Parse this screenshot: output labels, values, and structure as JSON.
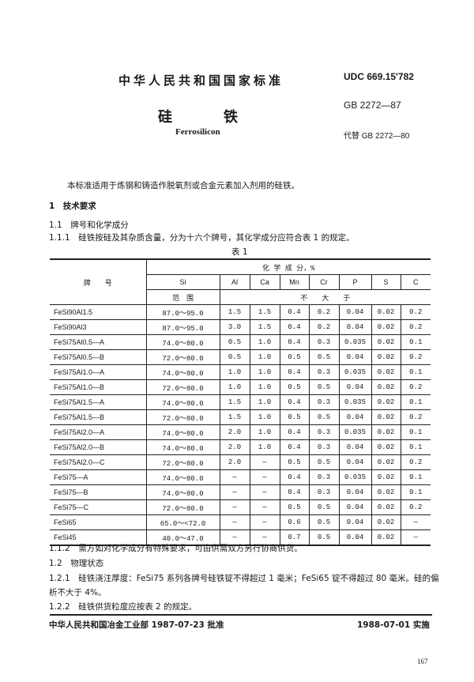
{
  "header": {
    "standard_title": "中华人民共和国国家标准",
    "udc": "UDC 669.15'782",
    "gb": "GB 2272—87",
    "title_char1": "硅",
    "title_char2": "铁",
    "title_en": "Ferrosilicon",
    "replaces": "代替 GB 2272—80"
  },
  "intro": "本标准适用于炼钢和铸造作脱氧剂或合金元素加入剂用的硅铁。",
  "sections": {
    "s1": "1　技术要求",
    "s1_1": "1.1　牌号和化学成分",
    "s1_1_1": "1.1.1　硅铁按硅及其杂质含量，分为十六个牌号，其化学成分应符合表 1 的规定。"
  },
  "table": {
    "caption": "表 1",
    "grade_header": "牌　　号",
    "composition_header": "化 学 成 分，%",
    "columns": [
      "Si",
      "Al",
      "Ca",
      "Mn",
      "Cr",
      "P",
      "S",
      "C"
    ],
    "range_label": "范　围",
    "max_label": "不　　大　　于",
    "rows": [
      [
        "FeSi90Al1.5",
        "87.0～95.0",
        "1.5",
        "1.5",
        "0.4",
        "0.2",
        "0.04",
        "0.02",
        "0.2"
      ],
      [
        "FeSi90Al3",
        "87.0～95.0",
        "3.0",
        "1.5",
        "0.4",
        "0.2",
        "0.04",
        "0.02",
        "0.2"
      ],
      [
        "FeSi75Al0.5—A",
        "74.0～80.0",
        "0.5",
        "1.0",
        "0.4",
        "0.3",
        "0.035",
        "0.02",
        "0.1"
      ],
      [
        "FeSi75Al0.5—B",
        "72.0～80.0",
        "0.5",
        "1.0",
        "0.5",
        "0.5",
        "0.04",
        "0.02",
        "0.2"
      ],
      [
        "FeSi75Al1.0—A",
        "74.0～80.0",
        "1.0",
        "1.0",
        "0.4",
        "0.3",
        "0.035",
        "0.02",
        "0.1"
      ],
      [
        "FeSi75Al1.0—B",
        "72.0～80.0",
        "1.0",
        "1.0",
        "0.5",
        "0.5",
        "0.04",
        "0.02",
        "0.2"
      ],
      [
        "FeSi75Al1.5—A",
        "74.0～80.0",
        "1.5",
        "1.0",
        "0.4",
        "0.3",
        "0.035",
        "0.02",
        "0.1"
      ],
      [
        "FeSi75Al1.5—B",
        "72.0～80.0",
        "1.5",
        "1.0",
        "0.5",
        "0.5",
        "0.04",
        "0.02",
        "0.2"
      ],
      [
        "FeSi75Al2.0—A",
        "74.0～80.0",
        "2.0",
        "1.0",
        "0.4",
        "0.3",
        "0.035",
        "0.02",
        "0.1"
      ],
      [
        "FeSi75Al2.0—B",
        "74.0～80.0",
        "2.0",
        "1.0",
        "0.4",
        "0.3",
        "0.04",
        "0.02",
        "0.1"
      ],
      [
        "FeSi75Al2.0—C",
        "72.0～80.0",
        "2.0",
        "—",
        "0.5",
        "0.5",
        "0.04",
        "0.02",
        "0.2"
      ],
      [
        "FeSi75—A",
        "74.0～80.0",
        "—",
        "—",
        "0.4",
        "0.3",
        "0.035",
        "0.02",
        "0.1"
      ],
      [
        "FeSi75—B",
        "74.0～80.0",
        "—",
        "—",
        "0.4",
        "0.3",
        "0.04",
        "0.02",
        "0.1"
      ],
      [
        "FeSi75—C",
        "72.0～80.0",
        "—",
        "—",
        "0.5",
        "0.5",
        "0.04",
        "0.02",
        "0.2"
      ],
      [
        "FeSi65",
        "65.0～<72.0",
        "—",
        "—",
        "0.6",
        "0.5",
        "0.04",
        "0.02",
        "—"
      ],
      [
        "FeSi45",
        "40.0～47.0",
        "—",
        "—",
        "0.7",
        "0.5",
        "0.04",
        "0.02",
        "—"
      ]
    ]
  },
  "after": {
    "s1_1_2": "1.1.2　需方如对化学成分有特殊要求，可由供需双方另行协商供货。",
    "s1_2": "1.2　物理状态",
    "s1_2_1a": "1.2.1　硅铁浇注厚度：FeSi75 系列各牌号硅铁锭不得超过 1 毫米；FeSi65 锭不得超过 80 毫米。硅的偏",
    "s1_2_1b": "析不大于 4%。",
    "s1_2_2": "1.2.2　硅铁供货粒度应按表 2 的规定。"
  },
  "footer": {
    "approved": "中华人民共和国冶金工业部 1987-07-23 批准",
    "effective": "1988-07-01 实施",
    "page": "167"
  }
}
